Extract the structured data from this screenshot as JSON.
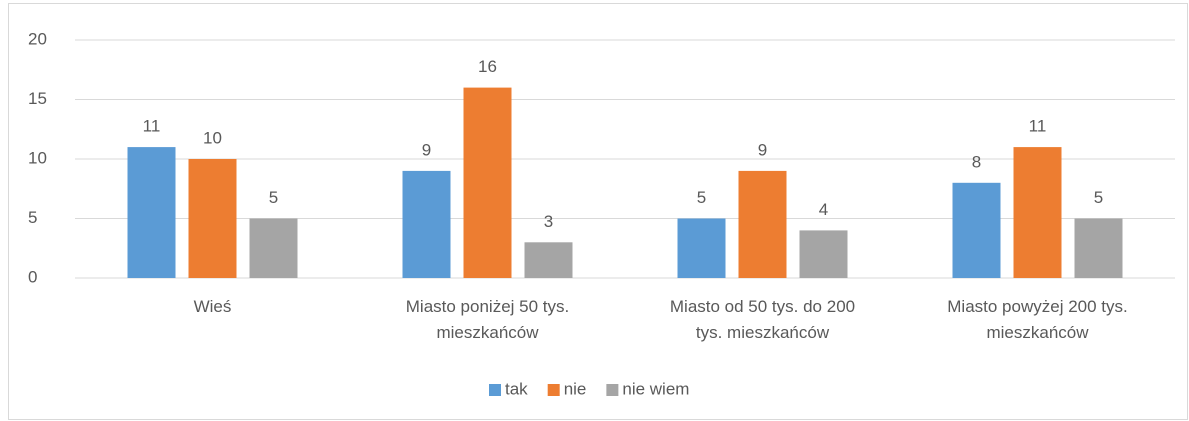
{
  "chart_data": {
    "type": "bar",
    "categories": [
      "Wieś",
      "Miasto poniżej 50 tys. mieszkańców",
      "Miasto od 50 tys. do 200 tys. mieszkańców",
      "Miasto powyżej 200 tys. mieszkańców"
    ],
    "series": [
      {
        "name": "tak",
        "color": "#5b9bd5",
        "values": [
          11,
          9,
          5,
          8
        ]
      },
      {
        "name": "nie",
        "color": "#ed7d31",
        "values": [
          10,
          16,
          9,
          11
        ]
      },
      {
        "name": "nie wiem",
        "color": "#a5a5a5",
        "values": [
          5,
          3,
          4,
          5
        ]
      }
    ],
    "ylim": [
      0,
      20
    ],
    "yticks": [
      0,
      5,
      10,
      15,
      20
    ],
    "grid": true,
    "legend": "bottom"
  }
}
